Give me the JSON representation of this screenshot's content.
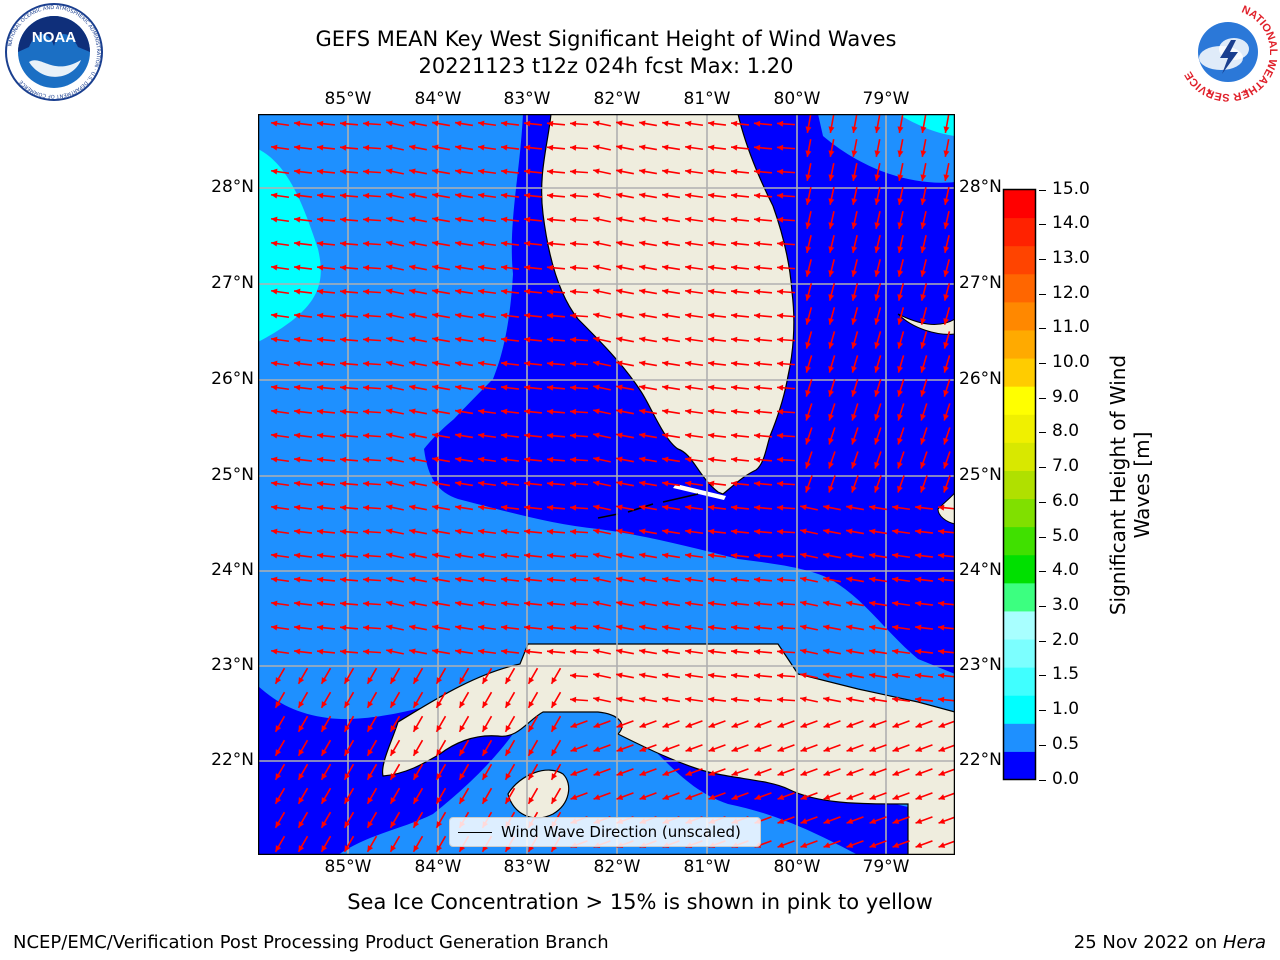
{
  "title": {
    "line1": "GEFS MEAN Key West Significant Height of Wind Waves",
    "line2": "20221123 t12z 024h fcst   Max: 1.20"
  },
  "axes": {
    "lon_labels": [
      "85°W",
      "84°W",
      "83°W",
      "82°W",
      "81°W",
      "80°W",
      "79°W"
    ],
    "lat_labels": [
      "28°N",
      "27°N",
      "26°N",
      "25°N",
      "24°N",
      "23°N",
      "22°N"
    ]
  },
  "colorbar": {
    "label_line1": "Significant Height of Wind",
    "label_line2": "Waves [m]",
    "ticks": [
      "15.0",
      "14.0",
      "13.0",
      "12.0",
      "11.0",
      "10.0",
      "9.0",
      "8.0",
      "7.0",
      "6.0",
      "5.0",
      "4.0",
      "3.0",
      "2.0",
      "1.5",
      "1.0",
      "0.5",
      "0.0"
    ],
    "colors": [
      "#0000ff",
      "#1e90ff",
      "#00ffff",
      "#40ffff",
      "#7cffff",
      "#a8ffff",
      "#3cff80",
      "#00e000",
      "#40e000",
      "#80e000",
      "#b0e000",
      "#d8e800",
      "#f0f000",
      "#ffff00",
      "#ffcc00",
      "#ffaa00",
      "#ff8800",
      "#ff6600",
      "#ff4400",
      "#ff2200",
      "#ff0000"
    ]
  },
  "map_colors": {
    "band_0_0_5": "#0000ff",
    "band_0_5_1_0": "#1e90ff",
    "band_1_0_1_5": "#00ffff",
    "land": "#efedde",
    "arrow": "#ff0000",
    "grid": "#b0b0b0"
  },
  "legend": {
    "label": "Wind Wave Direction (unscaled)"
  },
  "note": "Sea Ice Concentration > 15% is shown in pink to yellow",
  "footer": {
    "left": "NCEP/EMC/Verification Post Processing Product Generation Branch",
    "right_prefix": "25 Nov 2022 on ",
    "right_machine": "Hera"
  },
  "logos": {
    "noaa_text": "NOAA",
    "noaa_ring": "NATIONAL OCEANIC AND ATMOSPHERIC ADMINISTRATION · U.S. DEPARTMENT OF COMMERCE",
    "nws_ring": "NATIONAL WEATHER SERVICE"
  }
}
